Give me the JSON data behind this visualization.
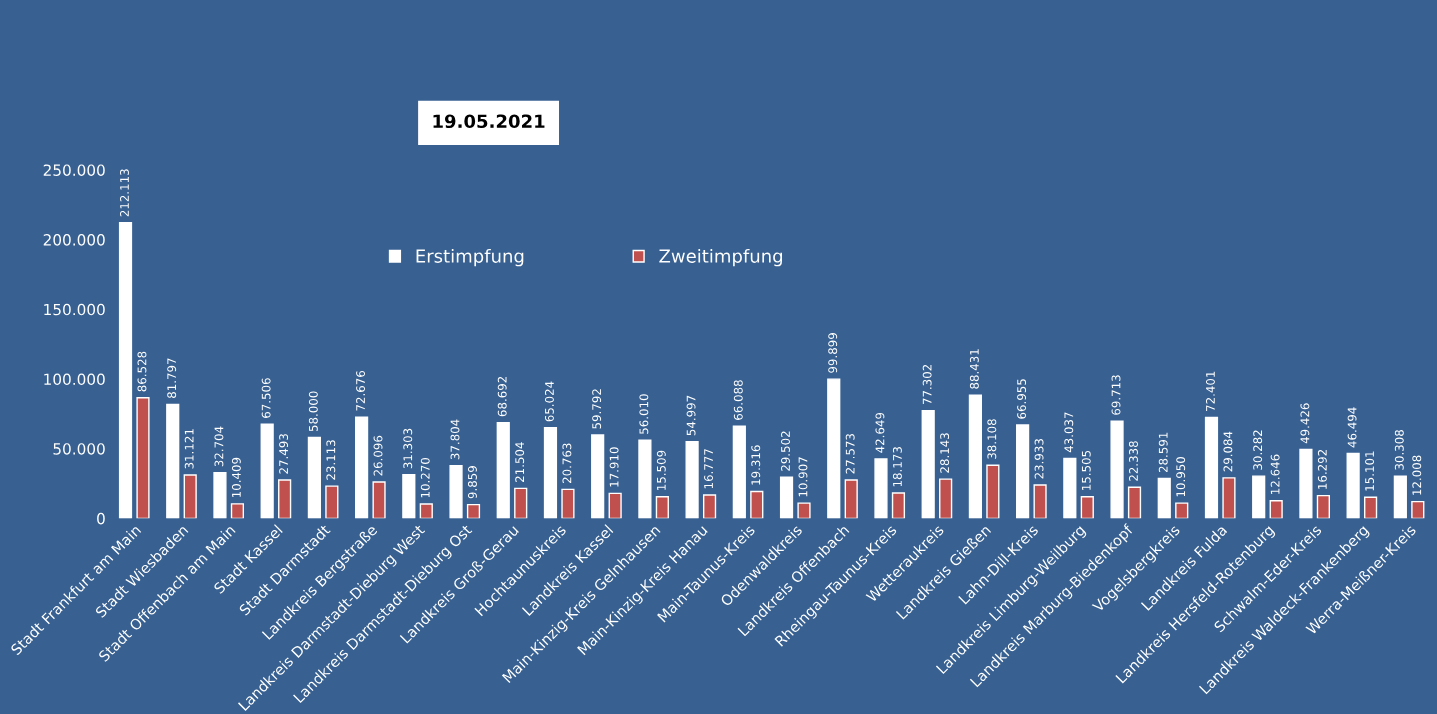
{
  "chart_data": {
    "type": "bar",
    "title": "19.05.2021",
    "categories": [
      "Stadt Frankfurt am Main",
      "Stadt Wiesbaden",
      "Stadt Offenbach am Main",
      "Stadt Kassel",
      "Stadt Darmstadt",
      "Landkreis Bergstraße",
      "Landkreis Darmstadt-Dieburg West",
      "Landkreis Darmstadt-Dieburg Ost",
      "Landkreis Groß-Gerau",
      "Hochtaunuskreis",
      "Landkreis Kassel",
      "Main-Kinzig-Kreis Gelnhausen",
      "Main-Kinzig-Kreis Hanau",
      "Main-Taunus-Kreis",
      "Odenwaldkreis",
      "Landkreis Offenbach",
      "Rheingau-Taunus-Kreis",
      "Wetteraukreis",
      "Landkreis Gießen",
      "Lahn-Dill-Kreis",
      "Landkreis Limburg-Weilburg",
      "Landkreis Marburg-Biedenkopf",
      "Vogelsbergkreis",
      "Landkreis Fulda",
      "Landkreis Hersfeld-Rotenburg",
      "Schwalm-Eder-Kreis",
      "Landkreis Waldeck-Frankenberg",
      "Werra-Meißner-Kreis"
    ],
    "series": [
      {
        "name": "Erstimpfung",
        "color": "#ffffff",
        "values": [
          212113,
          81797,
          32704,
          67506,
          58000,
          72676,
          31303,
          37804,
          68692,
          65024,
          59792,
          56010,
          54997,
          66088,
          29502,
          99899,
          42649,
          77302,
          88431,
          66955,
          43037,
          69713,
          28591,
          72401,
          30282,
          49426,
          46494,
          30308
        ],
        "value_labels": [
          "212.113",
          "81.797",
          "32.704",
          "67.506",
          "58.000",
          "72.676",
          "31.303",
          "37.804",
          "68.692",
          "65.024",
          "59.792",
          "56.010",
          "54.997",
          "66.088",
          "29.502",
          "99.899",
          "42.649",
          "77.302",
          "88.431",
          "66.955",
          "43.037",
          "69.713",
          "28.591",
          "72.401",
          "30.282",
          "49.426",
          "46.494",
          "30.308"
        ]
      },
      {
        "name": "Zweitimpfung",
        "color": "#c0504d",
        "values": [
          86528,
          31121,
          10409,
          27493,
          23113,
          26096,
          10270,
          9859,
          21504,
          20763,
          17910,
          15509,
          16777,
          19316,
          10907,
          27573,
          18173,
          28143,
          38108,
          23933,
          15505,
          22338,
          10950,
          29084,
          12646,
          16292,
          15101,
          12008
        ],
        "value_labels": [
          "86.528",
          "31.121",
          "10.409",
          "27.493",
          "23.113",
          "26.096",
          "10.270",
          "9.859",
          "21.504",
          "20.763",
          "17.910",
          "15.509",
          "16.777",
          "19.316",
          "10.907",
          "27.573",
          "18.173",
          "28.143",
          "38.108",
          "23.933",
          "15.505",
          "22.338",
          "10.950",
          "29.084",
          "12.646",
          "16.292",
          "15.101",
          "12.008"
        ]
      }
    ],
    "ylim": [
      0,
      250000
    ],
    "yticks": [
      0,
      {
        "value": 50000,
        "label": "50.000"
      },
      {
        "value": 100000,
        "label": "100.000"
      },
      {
        "value": 150000,
        "label": "150.000"
      },
      {
        "value": 200000,
        "label": "200.000"
      },
      {
        "value": 250000,
        "label": "250.000"
      }
    ],
    "grid": false,
    "legend": "top"
  }
}
